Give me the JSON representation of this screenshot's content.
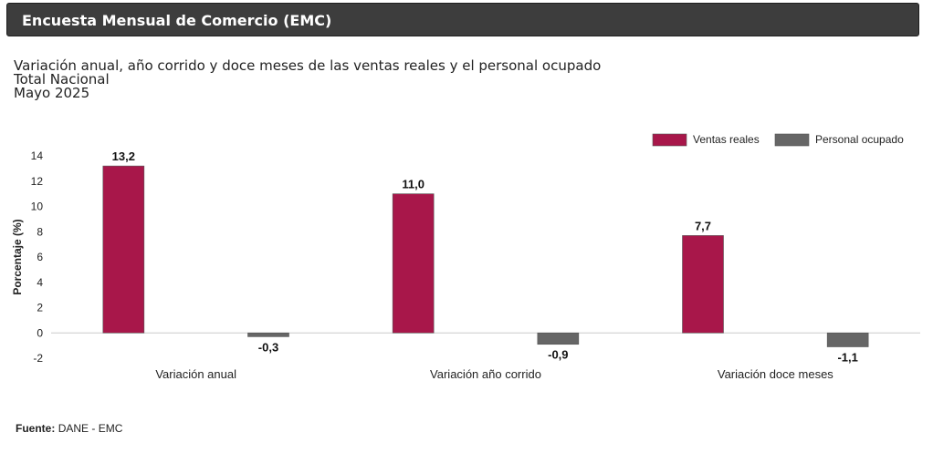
{
  "header": {
    "title": "Encuesta Mensual de Comercio (EMC)"
  },
  "titles": {
    "line1": "Variación anual, año corrido y doce meses de las ventas reales y el personal ocupado",
    "line2": "Total Nacional",
    "line3": "Mayo 2025"
  },
  "chart_data": {
    "type": "bar",
    "categories": [
      "Variación anual",
      "Variación año corrido",
      "Variación doce meses"
    ],
    "series": [
      {
        "name": "Ventas reales",
        "color": "#a8174a",
        "values": [
          13.2,
          11.0,
          7.7
        ],
        "labels": [
          "13,2",
          "11,0",
          "7,7"
        ]
      },
      {
        "name": "Personal ocupado",
        "color": "#666666",
        "values": [
          -0.3,
          -0.9,
          -1.1
        ],
        "labels": [
          "-0,3",
          "-0,9",
          "-1,1"
        ]
      }
    ],
    "ylabel": "Porcentaje (%)",
    "xlabel": "",
    "ylim": [
      -2,
      14
    ],
    "yticks": [
      -2,
      0,
      2,
      4,
      6,
      8,
      10,
      12,
      14
    ],
    "legend_position": "top-right",
    "grid": false
  },
  "source": {
    "label": "Fuente:",
    "text": "DANE - EMC"
  }
}
